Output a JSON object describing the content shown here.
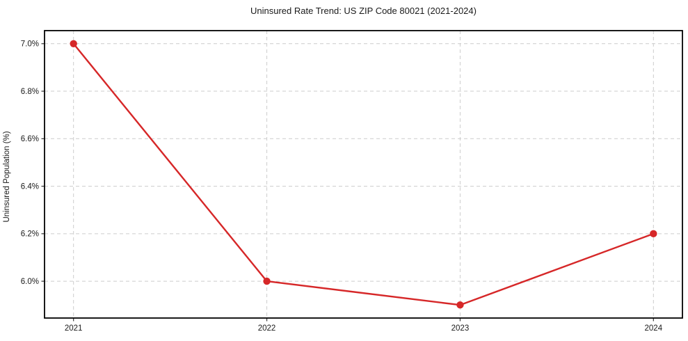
{
  "chart_data": {
    "type": "line",
    "title": "Uninsured Rate Trend: US ZIP Code 80021 (2021-2024)",
    "xlabel": "",
    "ylabel": "Uninsured Population (%)",
    "categories": [
      "2021",
      "2022",
      "2023",
      "2024"
    ],
    "x": [
      2021,
      2022,
      2023,
      2024
    ],
    "series": [
      {
        "name": "Uninsured Rate",
        "values": [
          7.0,
          6.0,
          5.9,
          6.2
        ]
      }
    ],
    "yticks": [
      6.0,
      6.2,
      6.4,
      6.6,
      6.8,
      7.0
    ],
    "ytick_labels": [
      "6.0%",
      "6.2%",
      "6.4%",
      "6.6%",
      "6.8%",
      "7.0%"
    ],
    "xlim": [
      2020.85,
      2024.15
    ],
    "ylim": [
      5.845,
      7.055
    ],
    "grid": true,
    "grid_style": "dashed",
    "legend": "none",
    "colors": {
      "line": "#d62728",
      "marker": "#d62728",
      "grid": "#cccccc",
      "spine": "#000000",
      "tick": "#333333",
      "text": "#1a1a1a",
      "background": "#ffffff"
    }
  }
}
